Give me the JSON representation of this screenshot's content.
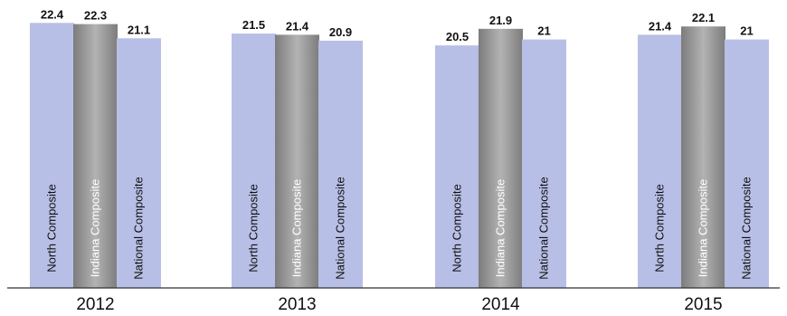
{
  "chart_data": {
    "type": "bar",
    "categories": [
      "2012",
      "2013",
      "2014",
      "2015"
    ],
    "series": [
      {
        "name": "North Composite",
        "values": [
          22.4,
          21.5,
          20.5,
          21.4
        ]
      },
      {
        "name": "Indiana Composite",
        "values": [
          22.3,
          21.4,
          21.9,
          22.1
        ]
      },
      {
        "name": "National Composite",
        "values": [
          21.1,
          20.9,
          21.0,
          21.0
        ]
      }
    ],
    "value_labels": [
      [
        "22.4",
        "22.3",
        "21.1"
      ],
      [
        "21.5",
        "21.4",
        "20.9"
      ],
      [
        "20.5",
        "21.9",
        "21"
      ],
      [
        "21.4",
        "22.1",
        "21"
      ]
    ],
    "colors": {
      "North Composite": "#b8bfe6",
      "Indiana Composite": "#9a9a9a",
      "National Composite": "#b8bfe6",
      "label_dark": "#111111",
      "label_light": "#ffffff"
    },
    "ylim": [
      0,
      22.5
    ],
    "title": "",
    "xlabel": "",
    "ylabel": "",
    "grid": false,
    "legend": "none"
  }
}
